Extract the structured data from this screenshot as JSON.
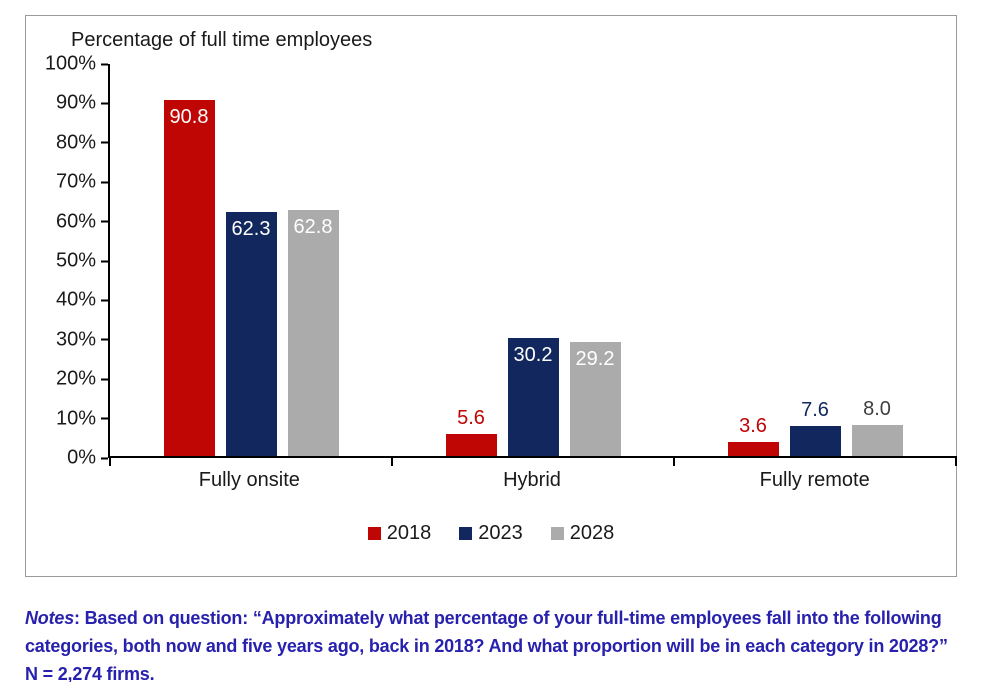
{
  "chart_data": {
    "type": "bar",
    "title": "Percentage of full time employees",
    "categories": [
      "Fully onsite",
      "Hybrid",
      "Fully remote"
    ],
    "series": [
      {
        "name": "2018",
        "color": "#c00505",
        "values": [
          90.8,
          5.6,
          3.6
        ],
        "display": [
          "90.8",
          "5.6",
          "3.6"
        ]
      },
      {
        "name": "2023",
        "color": "#12275e",
        "values": [
          62.3,
          30.2,
          7.6
        ],
        "display": [
          "62.3",
          "30.2",
          "7.6"
        ]
      },
      {
        "name": "2028",
        "color": "#ababab",
        "values": [
          62.8,
          29.2,
          8.0
        ],
        "display": [
          "62.8",
          "29.2",
          "8.0"
        ]
      }
    ],
    "xlabel": "",
    "ylabel": "",
    "ylim": [
      0,
      100
    ],
    "yticks": [
      "100%",
      "90%",
      "80%",
      "70%",
      "60%",
      "50%",
      "40%",
      "30%",
      "20%",
      "10%",
      "0%"
    ],
    "grid": false,
    "legend_position": "bottom",
    "value_label_inside_color": "#ffffff",
    "value_label_outside_colors": [
      "#c00505",
      "#12275e",
      "#3f3f3f"
    ]
  },
  "legend": {
    "items": [
      {
        "label": "2018",
        "color": "#c00505"
      },
      {
        "label": "2023",
        "color": "#12275e"
      },
      {
        "label": "2028",
        "color": "#ababab"
      }
    ]
  },
  "notes": {
    "label": "Notes",
    "text": ": Based on question: “Approximately what percentage of your full-time employees fall into the following categories, both now and five years ago, back in 2018? And what proportion will be in each category in 2028?” N = 2,274 firms."
  }
}
